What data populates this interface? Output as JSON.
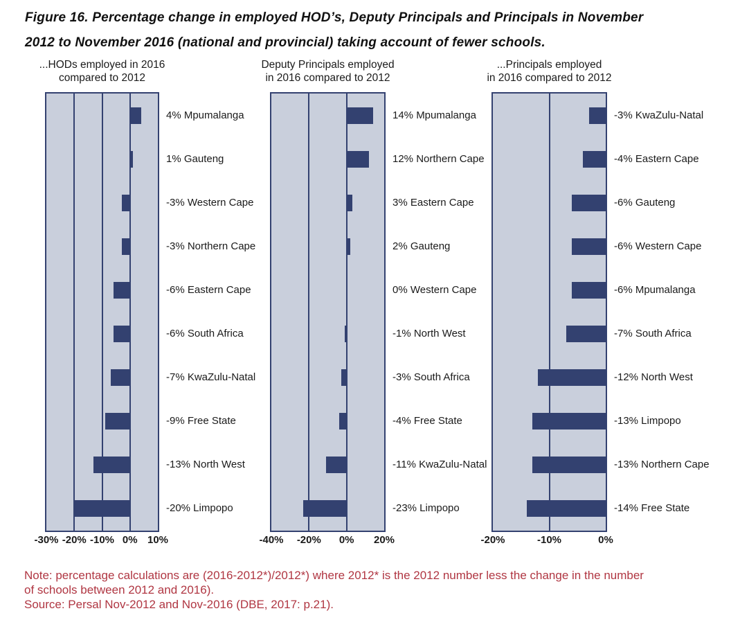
{
  "figure": {
    "title_line1": "Figure 16. Percentage change in employed HOD’s, Deputy Principals and Principals in November",
    "title_line2": "2012 to November 2016 (national and provincial) taking account of fewer schools.",
    "note_line1": "Note: percentage calculations are (2016-2012*)/2012*) where 2012* is the 2012 number less the change in the number",
    "note_line2": "of schools between 2012 and 2016).",
    "source_line": "Source: Persal Nov-2012 and Nov-2016 (DBE, 2017: p.21)."
  },
  "colors": {
    "bar": "#334170",
    "grid": "#334170",
    "plot_background": "#c9cfdc",
    "note_text": "#b03642",
    "title_text": "#111111"
  },
  "chart_data": [
    {
      "type": "bar",
      "orientation": "horizontal",
      "title_lines": [
        "...HODs employed in 2016",
        "compared to 2012"
      ],
      "xlim": [
        -30,
        10
      ],
      "grid": true,
      "ticks": [
        {
          "value": -30,
          "label": "-30%"
        },
        {
          "value": -20,
          "label": "-20%"
        },
        {
          "value": -10,
          "label": "-10%"
        },
        {
          "value": 0,
          "label": "0%"
        },
        {
          "value": 10,
          "label": "10%"
        }
      ],
      "rows": [
        {
          "category": "Mpumalanga",
          "value": 4,
          "label": "4% Mpumalanga"
        },
        {
          "category": "Gauteng",
          "value": 1,
          "label": "1% Gauteng"
        },
        {
          "category": "Western Cape",
          "value": -3,
          "label": "-3% Western Cape"
        },
        {
          "category": "Northern Cape",
          "value": -3,
          "label": "-3% Northern Cape"
        },
        {
          "category": "Eastern Cape",
          "value": -6,
          "label": "-6% Eastern Cape"
        },
        {
          "category": "South Africa",
          "value": -6,
          "label": "-6% South Africa"
        },
        {
          "category": "KwaZulu-Natal",
          "value": -7,
          "label": "-7% KwaZulu-Natal"
        },
        {
          "category": "Free State",
          "value": -9,
          "label": "-9% Free State"
        },
        {
          "category": "North West",
          "value": -13,
          "label": "-13% North West"
        },
        {
          "category": "Limpopo",
          "value": -20,
          "label": "-20% Limpopo"
        }
      ]
    },
    {
      "type": "bar",
      "orientation": "horizontal",
      "title_lines": [
        "Deputy Principals employed",
        "in 2016 compared to 2012"
      ],
      "xlim": [
        -40,
        20
      ],
      "grid": true,
      "ticks": [
        {
          "value": -40,
          "label": "-40%"
        },
        {
          "value": -20,
          "label": "-20%"
        },
        {
          "value": 0,
          "label": "0%"
        },
        {
          "value": 20,
          "label": "20%"
        }
      ],
      "rows": [
        {
          "category": "Mpumalanga",
          "value": 14,
          "label": "14% Mpumalanga"
        },
        {
          "category": "Northern Cape",
          "value": 12,
          "label": "12% Northern Cape"
        },
        {
          "category": "Eastern Cape",
          "value": 3,
          "label": "3% Eastern Cape"
        },
        {
          "category": "Gauteng",
          "value": 2,
          "label": "2% Gauteng"
        },
        {
          "category": "Western Cape",
          "value": 0,
          "label": "0% Western Cape"
        },
        {
          "category": "North West",
          "value": -1,
          "label": "-1% North West"
        },
        {
          "category": "South Africa",
          "value": -3,
          "label": "-3% South Africa"
        },
        {
          "category": "Free State",
          "value": -4,
          "label": "-4% Free State"
        },
        {
          "category": "KwaZulu-Natal",
          "value": -11,
          "label": "-11% KwaZulu-Natal"
        },
        {
          "category": "Limpopo",
          "value": -23,
          "label": "-23% Limpopo"
        }
      ]
    },
    {
      "type": "bar",
      "orientation": "horizontal",
      "title_lines": [
        "...Principals employed",
        "in 2016 compared to 2012"
      ],
      "xlim": [
        -20,
        0
      ],
      "grid": true,
      "ticks": [
        {
          "value": -20,
          "label": "-20%"
        },
        {
          "value": -10,
          "label": "-10%"
        },
        {
          "value": 0,
          "label": "0%"
        }
      ],
      "rows": [
        {
          "category": "KwaZulu-Natal",
          "value": -3,
          "label": "-3% KwaZulu-Natal"
        },
        {
          "category": "Eastern Cape",
          "value": -4,
          "label": "-4% Eastern Cape"
        },
        {
          "category": "Gauteng",
          "value": -6,
          "label": "-6% Gauteng"
        },
        {
          "category": "Western Cape",
          "value": -6,
          "label": "-6% Western Cape"
        },
        {
          "category": "Mpumalanga",
          "value": -6,
          "label": "-6% Mpumalanga"
        },
        {
          "category": "South Africa",
          "value": -7,
          "label": "-7% South Africa"
        },
        {
          "category": "North West",
          "value": -12,
          "label": "-12% North West"
        },
        {
          "category": "Limpopo",
          "value": -13,
          "label": "-13% Limpopo"
        },
        {
          "category": "Northern Cape",
          "value": -13,
          "label": "-13% Northern Cape"
        },
        {
          "category": "Free State",
          "value": -14,
          "label": "-14% Free State"
        }
      ]
    }
  ]
}
